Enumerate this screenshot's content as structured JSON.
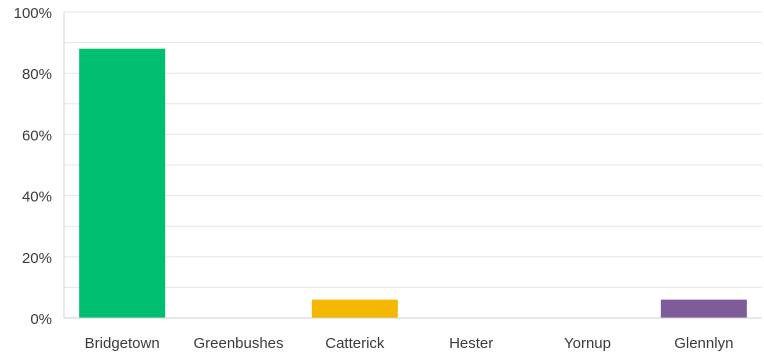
{
  "chart_data": {
    "type": "bar",
    "categories": [
      "Bridgetown",
      "Greenbushes",
      "Catterick",
      "Hester",
      "Yornup",
      "Glennlyn"
    ],
    "values": [
      88,
      0,
      6,
      0,
      0,
      6
    ],
    "colors": [
      "#00bf6f",
      "#00bf6f",
      "#f5b800",
      "#f5b800",
      "#7f5b9a",
      "#7f5b9a"
    ],
    "ylim": [
      0,
      100
    ],
    "yticks": [
      0,
      20,
      40,
      60,
      80,
      100
    ],
    "ytick_labels": [
      "0%",
      "20%",
      "40%",
      "60%",
      "80%",
      "100%"
    ],
    "grid": true,
    "title": "",
    "xlabel": "",
    "ylabel": ""
  }
}
